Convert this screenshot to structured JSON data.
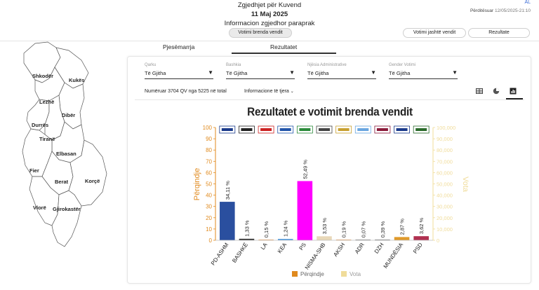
{
  "header": {
    "title": "Zgjedhjet për Kuvend",
    "date": "11 Maj 2025",
    "subtitle": "Informacion zgjedhor paraprak",
    "lang": "AL",
    "updated_label": "Përditësuar",
    "updated_time": "12/05/2025-21:10"
  },
  "buttons": {
    "inside": "Votimi brenda vendit",
    "outside": "Votimi jashtë vendit",
    "results": "Rezultate"
  },
  "tabs": {
    "participation": "Pjesëmarrja",
    "results": "Rezultatet"
  },
  "map": {
    "regions": [
      "Shkodër",
      "Kukës",
      "Lezhë",
      "Dibër",
      "Durrës",
      "Tiranë",
      "Elbasan",
      "Fier",
      "Berat",
      "Korçë",
      "Vlorë",
      "Gjirokastër"
    ]
  },
  "filters": [
    {
      "label": "Qarku",
      "value": "Të Gjitha"
    },
    {
      "label": "Bashkia",
      "value": "Të Gjitha"
    },
    {
      "label": "Njësia Administrative",
      "value": "Të Gjitha"
    },
    {
      "label": "Gender Votimi",
      "value": "Të Gjitha"
    }
  ],
  "info": {
    "counted": "Numëruar 3704 QV nga 5225 në total",
    "other": "Informacione të tjera"
  },
  "icons": {
    "table": "table-icon",
    "pie": "pie-chart-icon",
    "bar": "bar-chart-icon",
    "chevron": "chevron-down-icon"
  },
  "colors": {
    "percent_axis": "#e08a1e",
    "votes_axis": "#f0dc9a"
  },
  "chart_data": {
    "type": "bar",
    "title": "Rezultatet e votimit brenda vendit",
    "ylabel": "Përqindje",
    "y2label": "Vota",
    "ylim": [
      0,
      100
    ],
    "y2lim": [
      0,
      100000
    ],
    "yticks": [
      "0",
      "10",
      "20",
      "30",
      "40",
      "50",
      "60",
      "70",
      "80",
      "90",
      "100"
    ],
    "y2ticks": [
      "0",
      "10,000",
      "20,000",
      "30,000",
      "40,000",
      "50,000",
      "60,000",
      "70,000",
      "80,000",
      "90,000",
      "100,000"
    ],
    "grid": false,
    "legend": "bottom",
    "legend_entries": [
      "Përqindje",
      "Vota"
    ],
    "categories": [
      "PD-ASHM",
      "BASHKË",
      "LA",
      "KEA",
      "PS",
      "NISMA-SHB",
      "AKSH",
      "ADR",
      "DZH",
      "MUNDËSIA",
      "PSD"
    ],
    "values": [
      34.11,
      1.33,
      0.15,
      1.24,
      52.49,
      3.53,
      0.19,
      0.07,
      0.39,
      2.87,
      3.62
    ],
    "value_labels": [
      "34,11 %",
      "1,33 %",
      "0,15 %",
      "1,24 %",
      "52,49 %",
      "3,53 %",
      "0,19 %",
      "0,07 %",
      "0,39 %",
      "2,87 %",
      "3,62 %"
    ],
    "bar_colors": [
      "#2a4f9f",
      "#333333",
      "#e07a1a",
      "#5aa0e0",
      "#ff00ff",
      "#e8d8b8",
      "#e07a1a",
      "#444444",
      "#333333",
      "#e09a2a",
      "#b03050"
    ],
    "logo_colors": [
      "#1a3a8a",
      "#222222",
      "#cc2222",
      "#2255aa",
      "#2a8a3a",
      "#444444",
      "#c8a030",
      "#6aa6e0",
      "#8a1a3a",
      "#1a3a8a",
      "#2a6a2a"
    ]
  }
}
